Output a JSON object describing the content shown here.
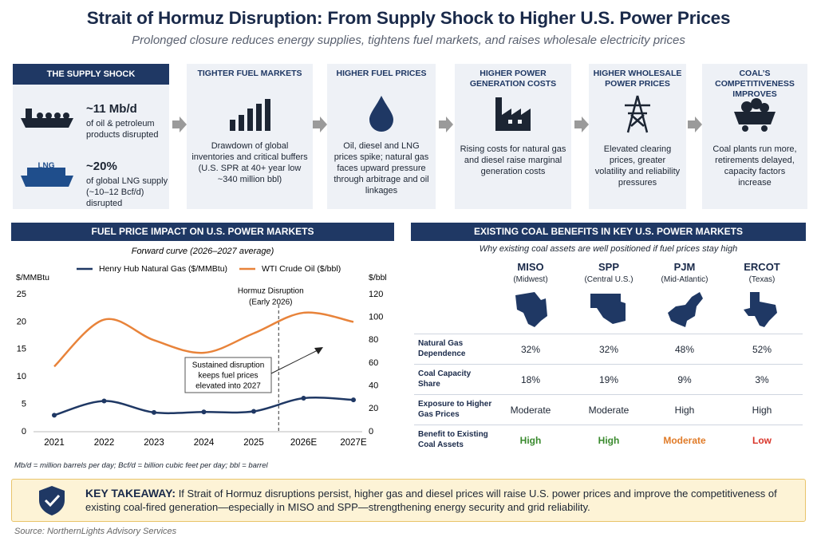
{
  "header": {
    "title": "Strait of Hormuz Disruption: From Supply Shock to Higher U.S. Power Prices",
    "subtitle": "Prolonged closure reduces energy supplies, tightens fuel markets, and raises wholesale electricity prices"
  },
  "flow": [
    {
      "title": "THE SUPPLY SHOCK",
      "items": [
        {
          "figure": "~11 Mb/d",
          "text": "of oil & petroleum products disrupted"
        },
        {
          "icon_label": "LNG",
          "figure": "~20%",
          "text": "of global LNG supply (~10–12 Bcf/d) disrupted"
        }
      ]
    },
    {
      "title": "TIGHTER FUEL MARKETS",
      "body": "Drawdown of global inventories and critical buffers (U.S. SPR at 40+ year low ~340 million bbl)"
    },
    {
      "title": "HIGHER FUEL PRICES",
      "body": "Oil, diesel and LNG prices spike; natural gas faces upward pressure through arbitrage and oil linkages"
    },
    {
      "title": "HIGHER POWER GENERATION COSTS",
      "body": "Rising costs for natural gas and diesel raise marginal generation costs"
    },
    {
      "title": "HIGHER WHOLESALE POWER PRICES",
      "body": "Elevated clearing prices, greater volatility and reliability pressures"
    },
    {
      "title": "COAL’S COMPETITIVENESS IMPROVES",
      "body": "Coal plants run more, retirements delayed, capacity factors increase"
    }
  ],
  "chart_data": {
    "type": "line",
    "title": "FUEL PRICE IMPACT ON U.S. POWER MARKETS",
    "subtitle": "Forward curve (2026–2027 average)",
    "ylabel": "$/MMBtu",
    "y2label": "$/bbl",
    "categories": [
      "2021",
      "2022",
      "2023",
      "2024",
      "2025",
      "2026E",
      "2027E"
    ],
    "series": [
      {
        "name": "Henry Hub Natural Gas ($/MMBtu)",
        "color": "#1f3864",
        "values": [
          3.0,
          5.6,
          3.5,
          3.6,
          3.7,
          6.1,
          5.8
        ]
      },
      {
        "name": "WTI Crude Oil ($/bbl)",
        "color": "#e8833a",
        "axis": "y2",
        "values": [
          57,
          98,
          80,
          69,
          86,
          104,
          96
        ]
      }
    ],
    "ylim": [
      0,
      25
    ],
    "yticks": [
      0,
      5,
      10,
      15,
      20,
      25
    ],
    "y2lim": [
      0,
      120
    ],
    "y2ticks": [
      0,
      20,
      40,
      60,
      80,
      100,
      120
    ],
    "grid": false,
    "annotations": {
      "event": [
        "Hormuz Disruption",
        "(Early 2026)"
      ],
      "note": [
        "Sustained disruption",
        "keeps fuel prices",
        "elevated into 2027"
      ]
    }
  },
  "table": {
    "title": "EXISTING COAL BENEFITS IN KEY U.S. POWER MARKETS",
    "subtitle": "Why existing coal assets are well positioned if fuel prices stay high",
    "columns": [
      {
        "name": "MISO",
        "region": "(Midwest)"
      },
      {
        "name": "SPP",
        "region": "(Central U.S.)"
      },
      {
        "name": "PJM",
        "region": "(Mid-Atlantic)"
      },
      {
        "name": "ERCOT",
        "region": "(Texas)"
      }
    ],
    "rows": [
      {
        "label": "Natural Gas Dependence",
        "cells": [
          "32%",
          "32%",
          "48%",
          "52%"
        ]
      },
      {
        "label": "Coal Capacity Share",
        "cells": [
          "18%",
          "19%",
          "9%",
          "3%"
        ]
      },
      {
        "label": "Exposure to Higher Gas Prices",
        "cells": [
          "Moderate",
          "Moderate",
          "High",
          "High"
        ]
      },
      {
        "label": "Benefit to Existing Coal Assets",
        "cells": [
          "High",
          "High",
          "Moderate",
          "Low"
        ],
        "colors": [
          "#3a8a2e",
          "#3a8a2e",
          "#e07b28",
          "#d9352a"
        ]
      }
    ]
  },
  "footnote": "Mb/d = million barrels per day; Bcf/d = billion cubic feet per day; bbl = barrel",
  "takeaway": {
    "label": "KEY TAKEAWAY:",
    "text": "If Strait of Hormuz disruptions persist, higher gas and diesel prices will raise U.S. power prices and improve the competitiveness of existing coal-fired generation—especially in MISO and SPP—strengthening energy security and grid reliability."
  },
  "source": "Source: NorthernLights Advisory Services"
}
